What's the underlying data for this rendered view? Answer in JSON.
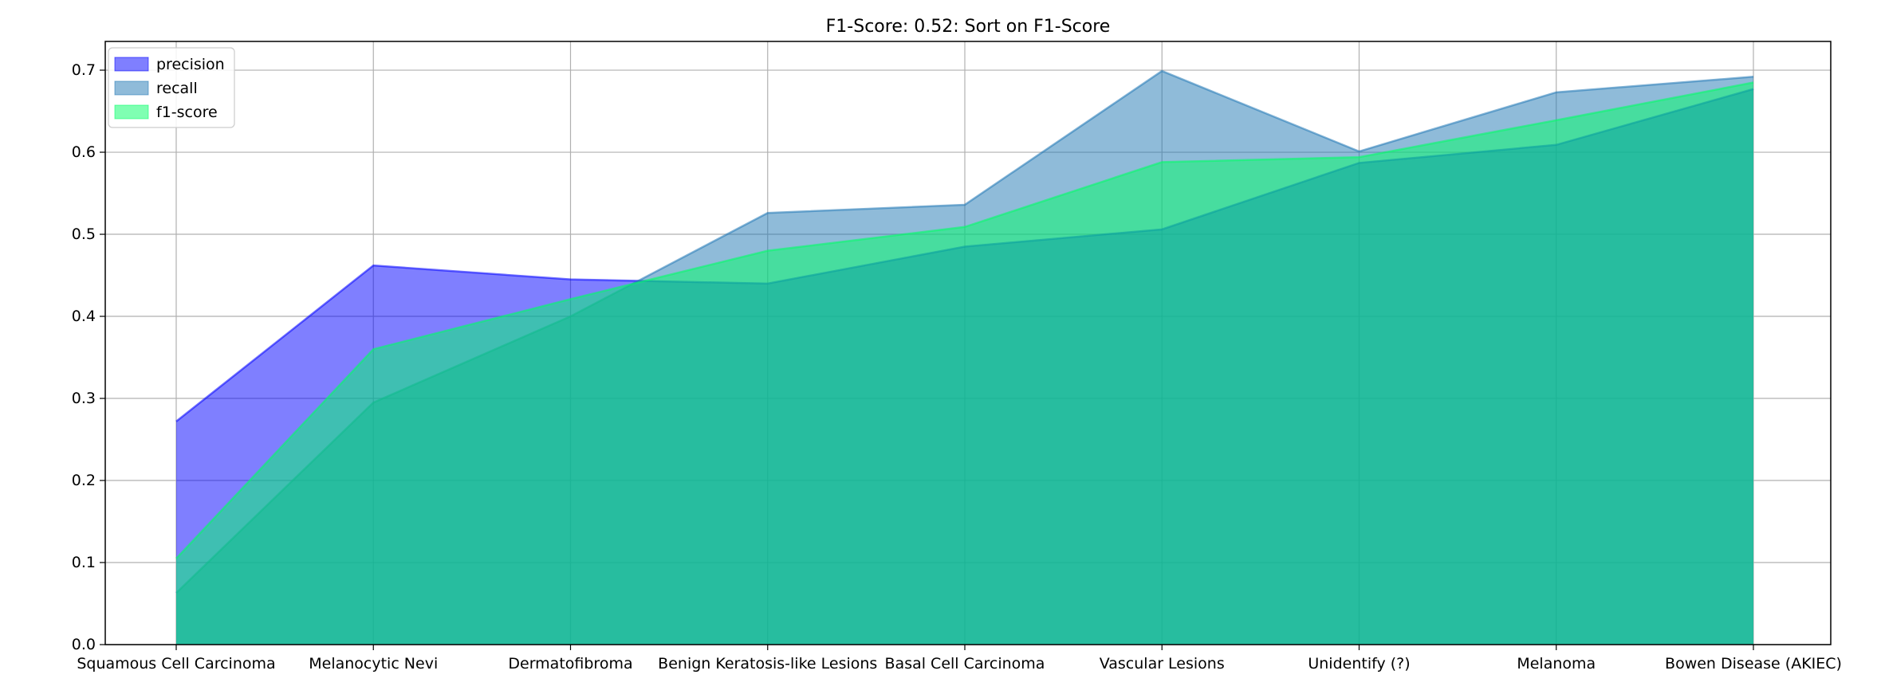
{
  "chart_data": {
    "type": "area",
    "title": "F1-Score: 0.52: Sort on F1-Score",
    "xlabel": "",
    "ylabel": "",
    "ylim": [
      0,
      0.735
    ],
    "yticks": [
      "0.0",
      "0.1",
      "0.2",
      "0.3",
      "0.4",
      "0.5",
      "0.6",
      "0.7"
    ],
    "grid": true,
    "legend_position": "top-left",
    "categories": [
      "Squamous Cell Carcinoma",
      "Melanocytic Nevi",
      "Dermatofibroma",
      "Benign Keratosis-like Lesions",
      "Basal Cell Carcinoma",
      "Vascular Lesions",
      "Unidentify (?)",
      "Melanoma",
      "Bowen Disease (AKIEC)"
    ],
    "series": [
      {
        "name": "precision",
        "color": "#0000ff",
        "values": [
          0.272,
          0.462,
          0.445,
          0.44,
          0.485,
          0.506,
          0.587,
          0.609,
          0.677
        ]
      },
      {
        "name": "recall",
        "color": "#1f77b4",
        "values": [
          0.063,
          0.295,
          0.4,
          0.526,
          0.536,
          0.699,
          0.601,
          0.673,
          0.692
        ]
      },
      {
        "name": "f1-score",
        "color": "#00ff66",
        "values": [
          0.105,
          0.36,
          0.421,
          0.48,
          0.509,
          0.588,
          0.594,
          0.639,
          0.685
        ]
      }
    ]
  }
}
